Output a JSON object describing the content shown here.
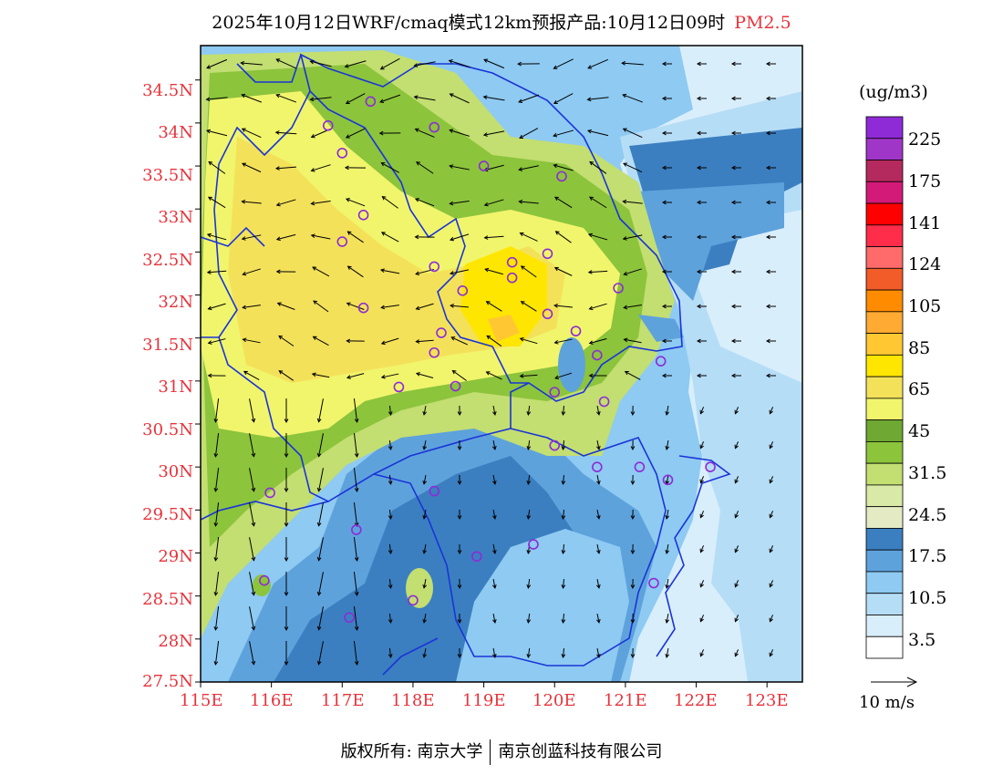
{
  "title": {
    "main": "2025年10月12日WRF/cmaq模式12km预报产品:10月12日09时",
    "pollutant": "PM2.5"
  },
  "axes": {
    "lat_labels": [
      "34.5N",
      "34N",
      "33.5N",
      "33N",
      "32.5N",
      "32N",
      "31.5N",
      "31N",
      "30.5N",
      "30N",
      "29.5N",
      "29N",
      "28.5N",
      "28N",
      "27.5N"
    ],
    "lon_labels": [
      "115E",
      "116E",
      "117E",
      "118E",
      "119E",
      "120E",
      "121E",
      "122E",
      "123E"
    ],
    "label_color": "#e8333b"
  },
  "colorbar": {
    "unit": "(ug/m3)",
    "labels": [
      "225",
      "175",
      "141",
      "124",
      "105",
      "85",
      "65",
      "45",
      "31.5",
      "24.5",
      "17.5",
      "10.5",
      "3.5"
    ],
    "colors": [
      "#8e2bd6",
      "#a036c8",
      "#b52a5e",
      "#d41a78",
      "#ff0000",
      "#ff2c4a",
      "#ff6a6a",
      "#f25c28",
      "#ff8c00",
      "#ffaa33",
      "#ffc833",
      "#ffe600",
      "#f4e15a",
      "#f1f56c",
      "#6fa832",
      "#8cc43c",
      "#c3de71",
      "#d9e9a8",
      "#e4ebc4",
      "#3b7fc0",
      "#5ea2dc",
      "#8ecaf2",
      "#b6ddf6",
      "#d9eefb",
      "#ffffff"
    ]
  },
  "wind_scale": {
    "label": "10 m/s"
  },
  "footer": {
    "left": "版权所有: 南京大学",
    "right": "南京创蓝科技有限公司"
  },
  "stations": [
    [
      117.4,
      34.25
    ],
    [
      116.8,
      33.97
    ],
    [
      117.0,
      33.65
    ],
    [
      118.3,
      33.95
    ],
    [
      119.0,
      33.5
    ],
    [
      120.1,
      33.38
    ],
    [
      117.3,
      32.93
    ],
    [
      117.0,
      32.62
    ],
    [
      118.3,
      32.33
    ],
    [
      119.4,
      32.38
    ],
    [
      119.9,
      32.48
    ],
    [
      119.4,
      32.2
    ],
    [
      118.7,
      32.05
    ],
    [
      120.9,
      32.08
    ],
    [
      117.3,
      31.85
    ],
    [
      119.9,
      31.78
    ],
    [
      120.3,
      31.58
    ],
    [
      118.4,
      31.56
    ],
    [
      118.3,
      31.33
    ],
    [
      120.6,
      31.3
    ],
    [
      121.5,
      31.23
    ],
    [
      117.8,
      30.93
    ],
    [
      118.6,
      30.94
    ],
    [
      120.0,
      30.87
    ],
    [
      120.7,
      30.76
    ],
    [
      120.0,
      30.25
    ],
    [
      120.6,
      30.0
    ],
    [
      121.2,
      30.0
    ],
    [
      121.6,
      29.85
    ],
    [
      122.2,
      30.0
    ],
    [
      115.98,
      29.7
    ],
    [
      118.3,
      29.72
    ],
    [
      117.2,
      29.27
    ],
    [
      118.9,
      28.96
    ],
    [
      119.7,
      29.1
    ],
    [
      121.4,
      28.65
    ],
    [
      115.9,
      28.68
    ],
    [
      118.0,
      28.45
    ],
    [
      117.1,
      28.25
    ]
  ]
}
